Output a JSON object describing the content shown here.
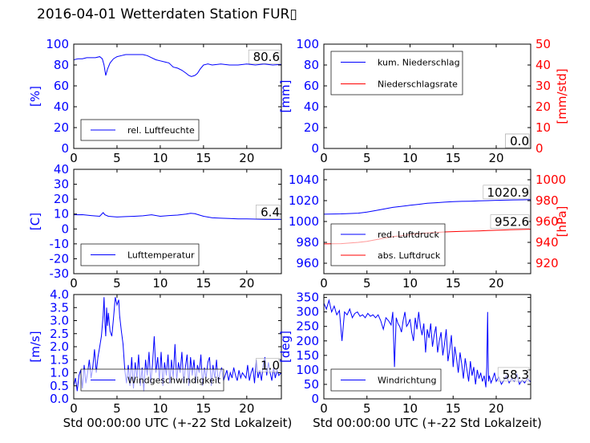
{
  "figure": {
    "title": "2016-04-01 Wetterdaten Station FUR▯",
    "xlabel": "Std 00:00:00 UTC (+-22 Std Lokalzeit)"
  },
  "colors": {
    "left_axis": "#0000ff",
    "right_axis": "#ff0000",
    "frame": "#000000"
  },
  "chart_data": [
    {
      "id": "humidity",
      "type": "line",
      "title": "",
      "xlabel": "",
      "ylabel": "[%]",
      "xlim": [
        0,
        24
      ],
      "ylim": [
        0,
        100
      ],
      "xticks": [
        0,
        5,
        10,
        15,
        20
      ],
      "yticks": [
        0,
        20,
        40,
        60,
        80,
        100
      ],
      "legend": "lower-left",
      "grid": false,
      "last_value_label": "80.6",
      "series": [
        {
          "name": "rel. Luftfeuchte",
          "color": "#0000ff",
          "x": [
            0,
            0.5,
            1,
            1.5,
            2,
            2.5,
            3,
            3.3,
            3.5,
            3.7,
            3.9,
            4.2,
            4.6,
            5,
            5.5,
            6,
            7,
            8,
            8.5,
            9,
            9.5,
            10,
            10.5,
            11,
            11.5,
            12,
            12.5,
            13,
            13.3,
            13.6,
            14,
            14.3,
            14.6,
            15,
            15.5,
            16,
            17,
            18,
            19,
            20,
            21,
            22,
            23,
            24
          ],
          "y": [
            85,
            86,
            86,
            87,
            87,
            87,
            88,
            86,
            80,
            70,
            76,
            82,
            86,
            88,
            89,
            90,
            90,
            90,
            89,
            87,
            85,
            84,
            83,
            82,
            78,
            77,
            75,
            72,
            70,
            69,
            70,
            72,
            76,
            80,
            81,
            80,
            81,
            80,
            80,
            81,
            80,
            81,
            80,
            80.6
          ]
        }
      ]
    },
    {
      "id": "precip",
      "type": "line",
      "title": "",
      "xlabel": "",
      "ylabel": "[mm]",
      "ylabel_right": "[mm/std]",
      "xlim": [
        0,
        24
      ],
      "ylim": [
        0,
        100
      ],
      "ylim_right": [
        0,
        50
      ],
      "xticks": [
        0,
        5,
        10,
        15,
        20
      ],
      "yticks": [
        0,
        20,
        40,
        60,
        80,
        100
      ],
      "yticks_right": [
        0,
        10,
        20,
        30,
        40,
        50
      ],
      "legend": "upper-left",
      "grid": false,
      "last_value_labels": [
        "0.0",
        "0.0"
      ],
      "series": [
        {
          "name": "kum. Niederschlag",
          "color": "#0000ff",
          "axis": "left",
          "x": [
            0,
            24
          ],
          "y": [
            0,
            0
          ]
        },
        {
          "name": "Niederschlagsrate",
          "color": "#ff0000",
          "axis": "right",
          "x": [
            0,
            24
          ],
          "y": [
            0,
            0
          ]
        }
      ]
    },
    {
      "id": "temperature",
      "type": "line",
      "title": "",
      "xlabel": "",
      "ylabel": "[C]",
      "xlim": [
        0,
        24
      ],
      "ylim": [
        -30,
        40
      ],
      "xticks": [
        0,
        5,
        10,
        15,
        20
      ],
      "yticks": [
        -30,
        -20,
        -10,
        0,
        10,
        20,
        30,
        40
      ],
      "legend": "lower-left",
      "grid": false,
      "last_value_label": "6.4",
      "series": [
        {
          "name": "Lufttemperatur",
          "color": "#0000ff",
          "x": [
            0,
            1,
            2,
            3,
            3.4,
            3.6,
            4,
            5,
            6,
            7,
            8,
            9,
            10,
            11,
            12,
            13,
            13.5,
            14,
            15,
            16,
            17,
            18,
            19,
            20,
            21,
            22,
            23,
            24
          ],
          "y": [
            9.5,
            9.6,
            9,
            8.5,
            11,
            9.5,
            8.5,
            8,
            8.3,
            8.5,
            8.8,
            9.5,
            8.5,
            9,
            9.3,
            10,
            10.5,
            10.2,
            8.5,
            7.5,
            7.2,
            7,
            6.8,
            6.7,
            6.6,
            6.5,
            6.4,
            6.4
          ]
        }
      ]
    },
    {
      "id": "pressure",
      "type": "line",
      "title": "",
      "xlabel": "",
      "ylabel": "",
      "ylabel_right": "[hPa]",
      "xlim": [
        0,
        24
      ],
      "ylim": [
        950,
        1050
      ],
      "ylim_right": [
        910,
        1010
      ],
      "xticks": [
        0,
        5,
        10,
        15,
        20
      ],
      "yticks": [
        960,
        980,
        1000,
        1020,
        1040
      ],
      "yticks_right": [
        920,
        940,
        960,
        980,
        1000
      ],
      "legend": "lower-left",
      "grid": false,
      "last_value_labels": [
        "1020.9",
        "952.6"
      ],
      "series": [
        {
          "name": "red. Luftdruck",
          "color": "#0000ff",
          "axis": "left",
          "x": [
            0,
            2,
            4,
            5,
            6,
            7,
            8,
            9,
            10,
            11,
            12,
            13,
            14,
            15,
            16,
            17,
            18,
            19,
            20,
            21,
            22,
            23,
            24
          ],
          "y": [
            1007,
            1007.3,
            1008,
            1009,
            1010.5,
            1012,
            1013.5,
            1014.5,
            1015.5,
            1016.5,
            1017.5,
            1018,
            1018.5,
            1019,
            1019.3,
            1019.5,
            1019.8,
            1020,
            1020.3,
            1020.5,
            1020.7,
            1020.8,
            1020.9
          ]
        },
        {
          "name": "abs. Luftdruck",
          "color": "#ff0000",
          "axis": "right",
          "x": [
            0,
            2,
            4,
            5,
            6,
            7,
            8,
            9,
            10,
            11,
            12,
            13,
            14,
            15,
            16,
            17,
            18,
            19,
            20,
            21,
            22,
            23,
            24
          ],
          "y": [
            938.5,
            938.8,
            940,
            941,
            942.5,
            944,
            945.5,
            946.5,
            947.5,
            948.3,
            949,
            949.5,
            950,
            950.3,
            950.6,
            950.8,
            951,
            951.3,
            951.6,
            951.9,
            952.2,
            952.4,
            952.6
          ]
        }
      ]
    },
    {
      "id": "windspeed",
      "type": "line",
      "title": "",
      "xlabel": "Std 00:00:00 UTC (+-22 Std Lokalzeit)",
      "ylabel": "[m/s]",
      "xlim": [
        0,
        24
      ],
      "ylim": [
        0,
        4
      ],
      "xticks": [
        0,
        5,
        10,
        15,
        20
      ],
      "yticks": [
        0,
        0.5,
        1.0,
        1.5,
        2.0,
        2.5,
        3.0,
        3.5,
        4.0
      ],
      "legend": "lower-left",
      "grid": false,
      "last_value_label": "1.0",
      "series": [
        {
          "name": "Windgeschwindigkeit",
          "color": "#0000ff",
          "x": [
            0,
            0.2,
            0.4,
            0.6,
            0.8,
            1.0,
            1.2,
            1.4,
            1.6,
            1.8,
            2.0,
            2.2,
            2.4,
            2.6,
            2.8,
            3.0,
            3.2,
            3.4,
            3.5,
            3.6,
            3.7,
            3.8,
            3.9,
            4.0,
            4.2,
            4.4,
            4.6,
            4.8,
            5.0,
            5.2,
            5.3,
            5.5,
            5.7,
            5.9,
            6.1,
            6.3,
            6.5,
            6.7,
            6.9,
            7.1,
            7.3,
            7.5,
            7.7,
            7.9,
            8.1,
            8.3,
            8.5,
            8.7,
            8.9,
            9.1,
            9.3,
            9.5,
            9.7,
            9.9,
            10.1,
            10.3,
            10.5,
            10.7,
            10.9,
            11.1,
            11.3,
            11.5,
            11.7,
            11.9,
            12.1,
            12.3,
            12.5,
            12.7,
            12.9,
            13.1,
            13.3,
            13.5,
            13.7,
            13.9,
            14.1,
            14.3,
            14.5,
            14.7,
            14.9,
            15.1,
            15.3,
            15.5,
            15.7,
            15.9,
            16.1,
            16.3,
            16.5,
            16.7,
            16.9,
            17.1,
            17.3,
            17.5,
            17.7,
            17.9,
            18.1,
            18.3,
            18.5,
            18.7,
            18.9,
            19.1,
            19.3,
            19.5,
            19.7,
            19.9,
            20.1,
            20.3,
            20.5,
            20.7,
            20.9,
            21.1,
            21.3,
            21.5,
            21.7,
            21.9,
            22.1,
            22.3,
            22.5,
            22.7,
            22.9,
            23.1,
            23.3,
            23.5,
            23.7,
            24.0
          ],
          "y": [
            0.5,
            0.8,
            0.3,
            0.9,
            1.1,
            0.4,
            1.3,
            0.6,
            1.0,
            1.5,
            0.8,
            1.2,
            1.9,
            1.0,
            1.6,
            2.0,
            2.4,
            3.2,
            3.9,
            3.0,
            2.4,
            3.5,
            2.8,
            3.3,
            2.6,
            2.4,
            3.1,
            3.9,
            3.6,
            3.8,
            3.2,
            2.6,
            2.1,
            1.1,
            0.6,
            1.3,
            0.5,
            1.6,
            0.4,
            1.4,
            0.8,
            1.7,
            0.5,
            1.2,
            0.3,
            1.5,
            0.9,
            1.8,
            0.6,
            1.3,
            2.4,
            1.0,
            1.6,
            0.7,
            1.8,
            0.5,
            1.4,
            0.9,
            1.7,
            0.6,
            1.5,
            0.8,
            2.1,
            0.7,
            1.4,
            1.0,
            1.8,
            0.6,
            1.2,
            1.7,
            0.5,
            1.6,
            0.9,
            1.5,
            0.6,
            1.3,
            1.0,
            1.7,
            0.5,
            1.2,
            0.8,
            1.4,
            1.6,
            0.5,
            1.3,
            0.8,
            1.5,
            0.6,
            1.0,
            1.2,
            0.7,
            0.9,
            1.1,
            0.7,
            1.0,
            0.8,
            1.2,
            0.9,
            0.7,
            1.1,
            0.8,
            1.0,
            0.9,
            0.8,
            1.3,
            0.7,
            1.0,
            1.2,
            0.6,
            1.5,
            0.8,
            1.1,
            0.7,
            1.3,
            1.6,
            0.9,
            1.4,
            1.0,
            0.7,
            1.2,
            0.8,
            1.1,
            0.9,
            1.0
          ]
        }
      ]
    },
    {
      "id": "winddir",
      "type": "line",
      "title": "",
      "xlabel": "Std 00:00:00 UTC (+-22 Std Lokalzeit)",
      "ylabel": "[deg]",
      "xlim": [
        0,
        24
      ],
      "ylim": [
        0,
        360
      ],
      "xticks": [
        0,
        5,
        10,
        15,
        20
      ],
      "yticks": [
        0,
        50,
        100,
        150,
        200,
        250,
        300,
        350
      ],
      "legend": "lower-left",
      "grid": false,
      "last_value_label": "58.3",
      "series": [
        {
          "name": "Windrichtung",
          "color": "#0000ff",
          "x": [
            0,
            0.3,
            0.6,
            0.9,
            1.2,
            1.5,
            1.8,
            2.1,
            2.4,
            2.7,
            3.0,
            3.3,
            3.6,
            3.9,
            4.2,
            4.5,
            4.8,
            5.1,
            5.4,
            5.7,
            6.0,
            6.3,
            6.6,
            6.9,
            7.2,
            7.5,
            7.8,
            8.0,
            8.2,
            8.4,
            8.6,
            8.8,
            9.0,
            9.2,
            9.4,
            9.6,
            9.8,
            10.0,
            10.2,
            10.4,
            10.6,
            10.8,
            11.0,
            11.2,
            11.4,
            11.6,
            11.8,
            12.0,
            12.2,
            12.4,
            12.6,
            12.8,
            13.0,
            13.2,
            13.4,
            13.6,
            13.8,
            14.0,
            14.2,
            14.4,
            14.6,
            14.8,
            15.0,
            15.2,
            15.4,
            15.6,
            15.8,
            16.0,
            16.2,
            16.4,
            16.6,
            16.8,
            17.0,
            17.2,
            17.4,
            17.6,
            17.8,
            18.0,
            18.2,
            18.4,
            18.6,
            18.8,
            18.9,
            19.0,
            19.1,
            19.2,
            19.4,
            19.6,
            19.8,
            20.0,
            20.3,
            20.6,
            20.9,
            21.2,
            21.5,
            21.8,
            22.1,
            22.4,
            22.7,
            23.0,
            23.3,
            23.6,
            24.0
          ],
          "y": [
            330,
            310,
            340,
            300,
            320,
            290,
            305,
            200,
            300,
            290,
            310,
            280,
            295,
            300,
            285,
            290,
            280,
            295,
            285,
            290,
            280,
            290,
            270,
            240,
            280,
            270,
            255,
            300,
            110,
            280,
            260,
            250,
            230,
            270,
            300,
            250,
            260,
            275,
            230,
            200,
            280,
            240,
            300,
            250,
            220,
            260,
            160,
            240,
            210,
            260,
            180,
            220,
            250,
            160,
            200,
            230,
            150,
            190,
            240,
            130,
            170,
            220,
            110,
            180,
            140,
            90,
            160,
            120,
            70,
            140,
            100,
            60,
            130,
            80,
            110,
            50,
            100,
            70,
            90,
            60,
            80,
            40,
            110,
            300,
            60,
            80,
            55,
            70,
            90,
            60,
            75,
            50,
            65,
            80,
            55,
            70,
            60,
            85,
            50,
            65,
            55,
            70,
            58.3
          ]
        }
      ]
    }
  ]
}
